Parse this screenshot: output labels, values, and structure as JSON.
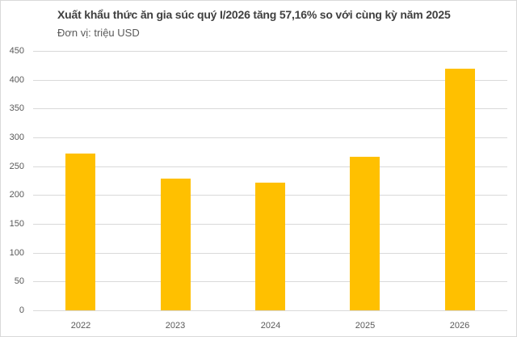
{
  "chart_data": {
    "type": "bar",
    "title": "Xuất khẩu thức ăn gia súc quý I/2026 tăng 57,16% so với cùng kỳ năm 2025",
    "subtitle": "Đơn vị: triệu USD",
    "xlabel": "",
    "ylabel": "",
    "categories": [
      "2022",
      "2023",
      "2024",
      "2025",
      "2026"
    ],
    "values": [
      272,
      228,
      221,
      266,
      419
    ],
    "ylim": [
      0,
      450
    ],
    "yticks": [
      0,
      50,
      100,
      150,
      200,
      250,
      300,
      350,
      400,
      450
    ],
    "grid": true,
    "legend": "none",
    "bar_color": "#ffc000"
  }
}
